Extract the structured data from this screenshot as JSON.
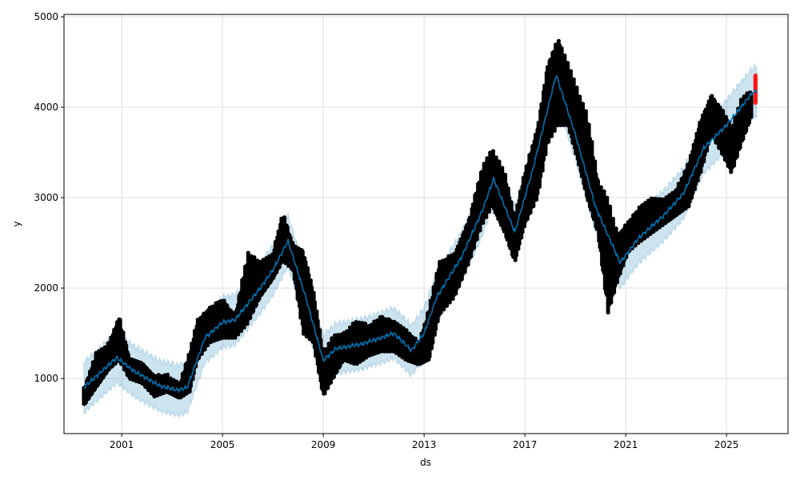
{
  "chart_data": {
    "type": "scatter",
    "title": "",
    "xlabel": "ds",
    "ylabel": "y",
    "xlim": [
      1998.71,
      2027.44
    ],
    "ylim": [
      390,
      5027
    ],
    "grid": true,
    "legend": "none",
    "x_ticks": [
      2001,
      2005,
      2009,
      2013,
      2017,
      2021,
      2025
    ],
    "x_tick_labels": [
      "2001",
      "2005",
      "2009",
      "2013",
      "2017",
      "2021",
      "2025"
    ],
    "y_ticks": [
      1000,
      2000,
      3000,
      4000,
      5000
    ],
    "y_tick_labels": [
      "1000",
      "2000",
      "3000",
      "4000",
      "5000"
    ],
    "colors": {
      "observed": "#000000",
      "forecast_points": "#ff0000",
      "yhat": "#0072B2",
      "interval": "#0072B2"
    },
    "uncertainty_halfwidth": 280,
    "yhat": [
      [
        1999.5,
        900
      ],
      [
        2000.8,
        1230
      ],
      [
        2001.5,
        1080
      ],
      [
        2002.5,
        920
      ],
      [
        2003.2,
        870
      ],
      [
        2003.6,
        900
      ],
      [
        2004.3,
        1450
      ],
      [
        2005.0,
        1620
      ],
      [
        2005.5,
        1650
      ],
      [
        2006.5,
        2000
      ],
      [
        2007.0,
        2200
      ],
      [
        2007.6,
        2520
      ],
      [
        2008.3,
        1900
      ],
      [
        2009.0,
        1200
      ],
      [
        2009.5,
        1330
      ],
      [
        2010.5,
        1380
      ],
      [
        2011.3,
        1450
      ],
      [
        2011.8,
        1500
      ],
      [
        2012.5,
        1310
      ],
      [
        2013.0,
        1500
      ],
      [
        2013.5,
        1900
      ],
      [
        2014.5,
        2350
      ],
      [
        2015.3,
        2850
      ],
      [
        2015.76,
        3210
      ],
      [
        2016.6,
        2620
      ],
      [
        2017.3,
        3300
      ],
      [
        2018.24,
        4360
      ],
      [
        2019.0,
        3700
      ],
      [
        2019.8,
        2900
      ],
      [
        2020.78,
        2280
      ],
      [
        2021.5,
        2550
      ],
      [
        2022.5,
        2800
      ],
      [
        2023.3,
        3050
      ],
      [
        2024.1,
        3550
      ],
      [
        2025.0,
        3800
      ],
      [
        2026.0,
        4150
      ],
      [
        2026.2,
        4180
      ]
    ],
    "observed_ranges": [
      [
        1999.5,
        700,
        900
      ],
      [
        2000.0,
        900,
        1300
      ],
      [
        2000.5,
        1100,
        1400
      ],
      [
        2000.9,
        1200,
        1700
      ],
      [
        2001.3,
        1000,
        1250
      ],
      [
        2001.8,
        950,
        1200
      ],
      [
        2002.3,
        800,
        1050
      ],
      [
        2002.8,
        850,
        1050
      ],
      [
        2003.3,
        780,
        950
      ],
      [
        2003.7,
        850,
        1300
      ],
      [
        2004.0,
        1200,
        1650
      ],
      [
        2004.5,
        1400,
        1800
      ],
      [
        2005.0,
        1450,
        1900
      ],
      [
        2005.5,
        1450,
        1700
      ],
      [
        2006.0,
        1600,
        2400
      ],
      [
        2006.5,
        1900,
        2300
      ],
      [
        2007.0,
        2100,
        2400
      ],
      [
        2007.4,
        2300,
        2850
      ],
      [
        2007.8,
        2200,
        2500
      ],
      [
        2008.2,
        1500,
        2450
      ],
      [
        2008.6,
        1400,
        2000
      ],
      [
        2009.0,
        800,
        1300
      ],
      [
        2009.4,
        1000,
        1500
      ],
      [
        2009.8,
        1200,
        1500
      ],
      [
        2010.3,
        1150,
        1650
      ],
      [
        2010.8,
        1250,
        1600
      ],
      [
        2011.3,
        1300,
        1700
      ],
      [
        2011.8,
        1300,
        1650
      ],
      [
        2012.3,
        1200,
        1550
      ],
      [
        2012.8,
        1150,
        1400
      ],
      [
        2013.2,
        1200,
        1800
      ],
      [
        2013.6,
        1700,
        2300
      ],
      [
        2014.2,
        1900,
        2400
      ],
      [
        2014.8,
        2300,
        2800
      ],
      [
        2015.3,
        2700,
        3350
      ],
      [
        2015.7,
        2900,
        3550
      ],
      [
        2016.2,
        2600,
        3300
      ],
      [
        2016.6,
        2280,
        2800
      ],
      [
        2017.0,
        2700,
        3300
      ],
      [
        2017.5,
        3000,
        3800
      ],
      [
        2017.9,
        3600,
        4500
      ],
      [
        2018.3,
        3800,
        4800
      ],
      [
        2018.7,
        3800,
        4500
      ],
      [
        2019.1,
        3400,
        4200
      ],
      [
        2019.5,
        2950,
        3900
      ],
      [
        2019.9,
        2600,
        3200
      ],
      [
        2020.3,
        1720,
        3000
      ],
      [
        2020.7,
        2100,
        2600
      ],
      [
        2021.1,
        2400,
        2750
      ],
      [
        2021.5,
        2500,
        2900
      ],
      [
        2022.0,
        2600,
        3000
      ],
      [
        2022.5,
        2700,
        3000
      ],
      [
        2023.0,
        2800,
        3100
      ],
      [
        2023.5,
        2900,
        3400
      ],
      [
        2024.0,
        3300,
        3900
      ],
      [
        2024.4,
        3700,
        4150
      ],
      [
        2024.8,
        3500,
        4000
      ],
      [
        2025.2,
        3270,
        3800
      ],
      [
        2025.6,
        3600,
        4100
      ],
      [
        2026.0,
        3900,
        4200
      ]
    ],
    "forecast_points_range": [
      [
        2026.15,
        4050,
        4350
      ]
    ]
  }
}
